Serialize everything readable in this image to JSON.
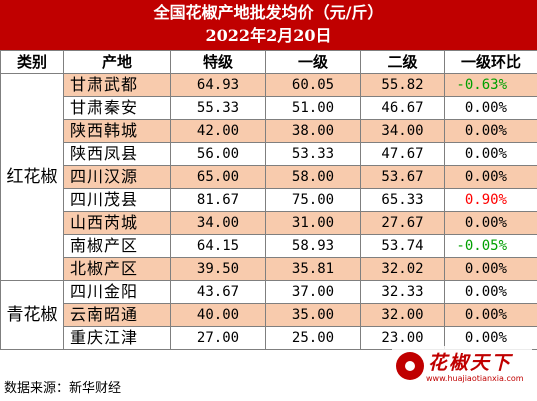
{
  "title": "全国花椒产地批发均价（元/斤）",
  "date": "2022年2月20日",
  "headers": [
    "类别",
    "产地",
    "特级",
    "一级",
    "二级",
    "一级环比"
  ],
  "groups": [
    {
      "category": "红花椒",
      "rows": [
        {
          "region": "甘肃武都",
          "special": "64.93",
          "first": "60.05",
          "second": "55.82",
          "change": "-0.63%",
          "trend": "down"
        },
        {
          "region": "甘肃秦安",
          "special": "55.33",
          "first": "51.00",
          "second": "46.67",
          "change": "0.00%",
          "trend": "flat"
        },
        {
          "region": "陕西韩城",
          "special": "42.00",
          "first": "38.00",
          "second": "34.00",
          "change": "0.00%",
          "trend": "flat"
        },
        {
          "region": "陕西凤县",
          "special": "56.00",
          "first": "53.33",
          "second": "47.67",
          "change": "0.00%",
          "trend": "flat"
        },
        {
          "region": "四川汉源",
          "special": "65.00",
          "first": "58.00",
          "second": "53.67",
          "change": "0.00%",
          "trend": "flat"
        },
        {
          "region": "四川茂县",
          "special": "81.67",
          "first": "75.00",
          "second": "65.33",
          "change": "0.90%",
          "trend": "up"
        },
        {
          "region": "山西芮城",
          "special": "34.00",
          "first": "31.00",
          "second": "27.67",
          "change": "0.00%",
          "trend": "flat"
        },
        {
          "region": "南椒产区",
          "special": "64.15",
          "first": "58.93",
          "second": "53.74",
          "change": "-0.05%",
          "trend": "down"
        },
        {
          "region": "北椒产区",
          "special": "39.50",
          "first": "35.81",
          "second": "32.02",
          "change": "0.00%",
          "trend": "flat"
        }
      ]
    },
    {
      "category": "青花椒",
      "rows": [
        {
          "region": "四川金阳",
          "special": "43.67",
          "first": "37.00",
          "second": "32.33",
          "change": "0.00%",
          "trend": "flat"
        },
        {
          "region": "云南昭通",
          "special": "40.00",
          "first": "35.00",
          "second": "32.00",
          "change": "0.00%",
          "trend": "flat"
        },
        {
          "region": "重庆江津",
          "special": "27.00",
          "first": "25.00",
          "second": "23.00",
          "change": "0.00%",
          "trend": "flat"
        }
      ]
    }
  ],
  "source": "数据来源：新华财经",
  "logo": {
    "text": "花椒天下",
    "url": "www.huajiaotianxia.com"
  },
  "colors": {
    "title_bg": "#c00000",
    "shade": "#f8cbad",
    "up": "#ff0000",
    "down": "#00a000"
  }
}
